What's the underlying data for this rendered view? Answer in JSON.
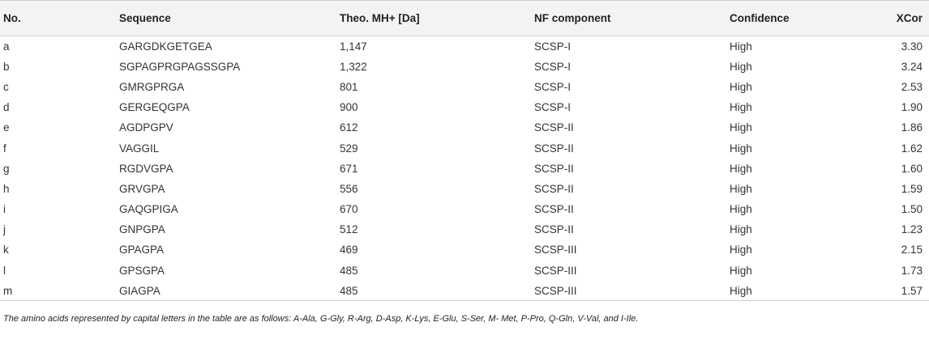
{
  "table": {
    "headers": [
      "No.",
      "Sequence",
      "Theo. MH+ [Da]",
      "NF component",
      "Confidence",
      "XCor"
    ],
    "rows": [
      [
        "a",
        "GARGDKGETGEA",
        "1,147",
        "SCSP-I",
        "High",
        "3.30"
      ],
      [
        "b",
        "SGPAGPRGPAGSSGPA",
        "1,322",
        "SCSP-I",
        "High",
        "3.24"
      ],
      [
        "c",
        "GMRGPRGA",
        "801",
        "SCSP-I",
        "High",
        "2.53"
      ],
      [
        "d",
        "GERGEQGPA",
        "900",
        "SCSP-I",
        "High",
        "1.90"
      ],
      [
        "e",
        "AGDPGPV",
        "612",
        "SCSP-II",
        "High",
        "1.86"
      ],
      [
        "f",
        "VAGGIL",
        "529",
        "SCSP-II",
        "High",
        "1.62"
      ],
      [
        "g",
        "RGDVGPA",
        "671",
        "SCSP-II",
        "High",
        "1.60"
      ],
      [
        "h",
        "GRVGPA",
        "556",
        "SCSP-II",
        "High",
        "1.59"
      ],
      [
        "i",
        "GAQGPIGA",
        "670",
        "SCSP-II",
        "High",
        "1.50"
      ],
      [
        "j",
        "GNPGPA",
        "512",
        "SCSP-II",
        "High",
        "1.23"
      ],
      [
        "k",
        "GPAGPA",
        "469",
        "SCSP-III",
        "High",
        "2.15"
      ],
      [
        "l",
        "GPSGPA",
        "485",
        "SCSP-III",
        "High",
        "1.73"
      ],
      [
        "m",
        "GIAGPA",
        "485",
        "SCSP-III",
        "High",
        "1.57"
      ]
    ]
  },
  "footnote": "The amino acids represented by capital letters in the table are as follows: A-Ala, G-Gly, R-Arg, D-Asp, K-Lys, E-Glu, S-Ser, M- Met, P-Pro, Q-Gln, V-Val, and I-Ile."
}
